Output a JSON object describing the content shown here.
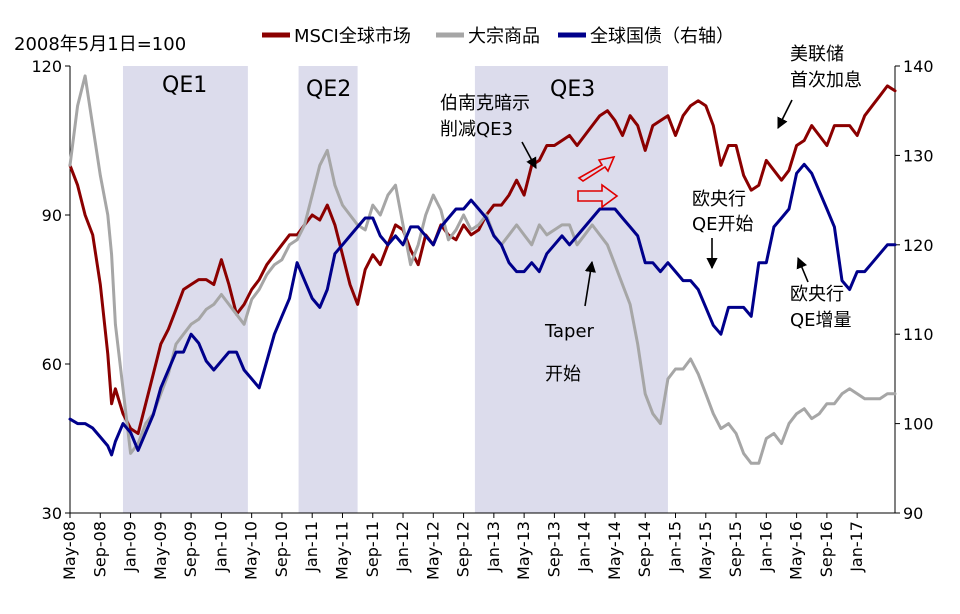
{
  "chart_data": {
    "type": "line",
    "y_unit_note": "2008年5月1日=100",
    "left_axis": {
      "range": [
        30,
        120
      ],
      "ticks": [
        "120",
        "90",
        "60",
        "30"
      ],
      "tick_values": [
        120,
        90,
        60,
        30
      ]
    },
    "right_axis": {
      "range": [
        90,
        140
      ],
      "ticks": [
        "140",
        "130",
        "120",
        "110",
        "100",
        "90"
      ],
      "tick_values": [
        140,
        130,
        120,
        110,
        100,
        90
      ]
    },
    "x_tick_labels": [
      "May-08",
      "Sep-08",
      "Jan-09",
      "May-09",
      "Sep-09",
      "Jan-10",
      "May-10",
      "Sep-10",
      "Jan-11",
      "May-11",
      "Sep-11",
      "Jan-12",
      "May-12",
      "Sep-12",
      "Jan-13",
      "May-13",
      "Sep-13",
      "Jan-14",
      "May-14",
      "Sep-14",
      "Jan-15",
      "May-15",
      "Sep-15",
      "Jan-16",
      "May-16",
      "Sep-16",
      "Jan-17"
    ],
    "x_tick_months": [
      0,
      4,
      8,
      12,
      16,
      20,
      24,
      28,
      32,
      36,
      40,
      44,
      48,
      52,
      56,
      60,
      64,
      68,
      72,
      76,
      80,
      84,
      88,
      92,
      96,
      100,
      104
    ],
    "x_range_months": [
      0,
      109
    ],
    "legend": [
      {
        "name": "MSCI全球市场",
        "color": "#8B0000"
      },
      {
        "name": "大宗商品",
        "color": "#A6A6A6"
      },
      {
        "name": "全球国债（右轴）",
        "color": "#00008B"
      }
    ],
    "shaded_periods": [
      {
        "label": "QE1",
        "start_month": 7,
        "end_month": 23.5
      },
      {
        "label": "QE2",
        "start_month": 30.2,
        "end_month": 38
      },
      {
        "label": "QE3",
        "start_month": 53.5,
        "end_month": 79
      }
    ],
    "series": [
      {
        "name": "MSCI全球市场",
        "axis": "left",
        "color": "#8B0000",
        "x_months": [
          0,
          1,
          2,
          3,
          4,
          5,
          5.5,
          6,
          7,
          8,
          9,
          10,
          11,
          12,
          13,
          14,
          15,
          16,
          17,
          18,
          19,
          20,
          21,
          22,
          23,
          24,
          25,
          26,
          27,
          28,
          29,
          30,
          31,
          32,
          33,
          34,
          35,
          36,
          37,
          38,
          39,
          40,
          41,
          42,
          43,
          44,
          45,
          46,
          47,
          48,
          49,
          50,
          51,
          52,
          53,
          54,
          55,
          56,
          57,
          58,
          59,
          60,
          61,
          62,
          63,
          64,
          65,
          66,
          67,
          68,
          69,
          70,
          71,
          72,
          73,
          74,
          75,
          76,
          77,
          78,
          79,
          80,
          81,
          82,
          83,
          84,
          85,
          86,
          87,
          88,
          89,
          90,
          91,
          92,
          93,
          94,
          95,
          96,
          97,
          98,
          99,
          100,
          101,
          102,
          103,
          104,
          105,
          106,
          107,
          108,
          109
        ],
        "values": [
          100,
          96,
          90,
          86,
          76,
          62,
          52,
          55,
          50,
          47,
          46,
          52,
          58,
          64,
          67,
          71,
          75,
          76,
          77,
          77,
          76,
          81,
          76,
          70,
          72,
          75,
          77,
          80,
          82,
          84,
          86,
          86,
          88,
          90,
          89,
          92,
          88,
          82,
          76,
          72,
          79,
          82,
          80,
          84,
          88,
          87,
          83,
          80,
          86,
          84,
          88,
          86,
          85,
          88,
          86,
          87,
          90,
          92,
          92,
          94,
          97,
          94,
          100,
          101,
          104,
          104,
          105,
          106,
          104,
          106,
          108,
          110,
          111,
          109,
          106,
          110,
          108,
          103,
          108,
          109,
          110,
          106,
          110,
          112,
          113,
          112,
          108,
          100,
          104,
          104,
          98,
          95,
          96,
          101,
          99,
          97,
          99,
          104,
          105,
          108,
          106,
          104,
          108,
          108,
          108,
          106,
          110,
          112,
          114,
          116,
          115
        ]
      },
      {
        "name": "大宗商品",
        "axis": "left",
        "color": "#A6A6A6",
        "x_months": [
          0,
          1,
          2,
          3,
          4,
          5,
          5.5,
          6,
          7,
          8,
          9,
          10,
          11,
          12,
          13,
          14,
          15,
          16,
          17,
          18,
          19,
          20,
          21,
          22,
          23,
          24,
          25,
          26,
          27,
          28,
          29,
          30,
          31,
          32,
          33,
          34,
          35,
          36,
          37,
          38,
          39,
          40,
          41,
          42,
          43,
          44,
          45,
          46,
          47,
          48,
          49,
          50,
          51,
          52,
          53,
          54,
          55,
          56,
          57,
          58,
          59,
          60,
          61,
          62,
          63,
          64,
          65,
          66,
          67,
          68,
          69,
          70,
          71,
          72,
          73,
          74,
          75,
          76,
          77,
          78,
          79,
          80,
          81,
          82,
          83,
          84,
          85,
          86,
          87,
          88,
          89,
          90,
          91,
          92,
          93,
          94,
          95,
          96,
          97,
          98,
          99,
          100,
          101,
          102,
          103,
          104,
          105,
          106,
          107,
          108,
          109
        ],
        "values": [
          100,
          112,
          118,
          108,
          98,
          90,
          82,
          68,
          55,
          42,
          44,
          48,
          50,
          54,
          58,
          64,
          66,
          68,
          69,
          71,
          72,
          74,
          72,
          70,
          68,
          73,
          75,
          78,
          80,
          81,
          84,
          85,
          88,
          94,
          100,
          103,
          96,
          92,
          90,
          88,
          87,
          92,
          90,
          94,
          96,
          88,
          80,
          84,
          90,
          94,
          91,
          85,
          87,
          90,
          87,
          88,
          90,
          86,
          84,
          86,
          88,
          86,
          84,
          88,
          86,
          87,
          88,
          88,
          84,
          86,
          88,
          86,
          84,
          80,
          76,
          72,
          64,
          54,
          50,
          48,
          57,
          59,
          59,
          61,
          58,
          54,
          50,
          47,
          48,
          46,
          42,
          40,
          40,
          45,
          46,
          44,
          48,
          50,
          51,
          49,
          50,
          52,
          52,
          54,
          55,
          54,
          53,
          53,
          53,
          54,
          54
        ]
      },
      {
        "name": "全球国债（右轴）",
        "axis": "right",
        "color": "#00008B",
        "x_months": [
          0,
          1,
          2,
          3,
          4,
          5,
          5.5,
          6,
          7,
          8,
          9,
          10,
          11,
          12,
          13,
          14,
          15,
          16,
          17,
          18,
          19,
          20,
          21,
          22,
          23,
          24,
          25,
          26,
          27,
          28,
          29,
          30,
          31,
          32,
          33,
          34,
          35,
          36,
          37,
          38,
          39,
          40,
          41,
          42,
          43,
          44,
          45,
          46,
          47,
          48,
          49,
          50,
          51,
          52,
          53,
          54,
          55,
          56,
          57,
          58,
          59,
          60,
          61,
          62,
          63,
          64,
          65,
          66,
          67,
          68,
          69,
          70,
          71,
          72,
          73,
          74,
          75,
          76,
          77,
          78,
          79,
          80,
          81,
          82,
          83,
          84,
          85,
          86,
          87,
          88,
          89,
          90,
          91,
          92,
          93,
          94,
          95,
          96,
          97,
          98,
          99,
          100,
          101,
          102,
          103,
          104,
          105,
          106,
          107,
          108,
          109
        ],
        "values": [
          100.5,
          100,
          100,
          99.5,
          98.5,
          97.5,
          96.5,
          98,
          100,
          99,
          97,
          99,
          101,
          104,
          106,
          108,
          108,
          110,
          109,
          107,
          106,
          107,
          108,
          108,
          106,
          105,
          104,
          107,
          110,
          112,
          114,
          118,
          116,
          114,
          113,
          115,
          119,
          120,
          121,
          122,
          123,
          123,
          121,
          120,
          121,
          120,
          122,
          122,
          121,
          120,
          122,
          123,
          124,
          124,
          125,
          124,
          123,
          121,
          120,
          118,
          117,
          117,
          118,
          117,
          119,
          120,
          121,
          120,
          121,
          122,
          123,
          124,
          124,
          124,
          123,
          122,
          121,
          118,
          118,
          117,
          118,
          117,
          116,
          116,
          115,
          113,
          111,
          110,
          113,
          113,
          113,
          112,
          118,
          118,
          122,
          123,
          124,
          128,
          129,
          128,
          126,
          124,
          122,
          116,
          115,
          117,
          117,
          118,
          119,
          120,
          120
        ]
      }
    ],
    "annotations": [
      {
        "id": "taper-reduce",
        "lines": [
          "伯南克暗示",
          "削减QE3"
        ]
      },
      {
        "id": "fed-hike",
        "lines": [
          "美联储",
          "首次加息"
        ]
      },
      {
        "id": "ecb-start",
        "lines": [
          "欧央行",
          "QE开始"
        ]
      },
      {
        "id": "ecb-increase",
        "lines": [
          "欧央行",
          "QE增量"
        ]
      },
      {
        "id": "taper-start",
        "lines": [
          "Taper",
          "开始"
        ]
      }
    ]
  }
}
